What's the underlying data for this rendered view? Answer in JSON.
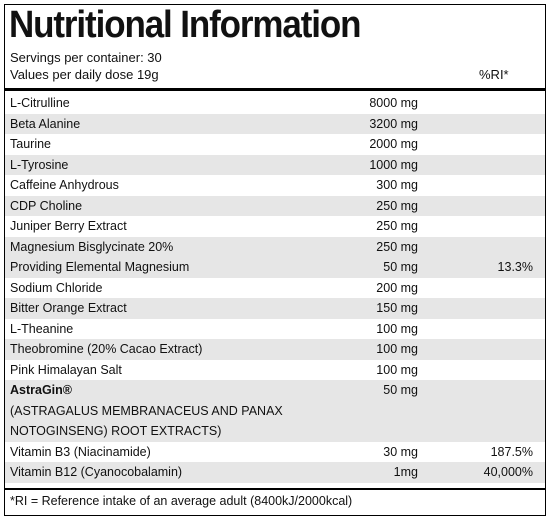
{
  "title": "Nutritional Information",
  "servings": "Servings per container: 30",
  "values_per": "Values per daily dose 19g",
  "ri_header": "%RI*",
  "rows": [
    {
      "name": "L-Citrulline",
      "amount": "8000 mg",
      "ri": ""
    },
    {
      "name": "Beta Alanine",
      "amount": "3200 mg",
      "ri": ""
    },
    {
      "name": "Taurine",
      "amount": "2000 mg",
      "ri": ""
    },
    {
      "name": "L-Tyrosine",
      "amount": "1000 mg",
      "ri": ""
    },
    {
      "name": "Caffeine Anhydrous",
      "amount": "300 mg",
      "ri": ""
    },
    {
      "name": "CDP Choline",
      "amount": "250 mg",
      "ri": ""
    },
    {
      "name": "Juniper Berry Extract",
      "amount": "250 mg",
      "ri": ""
    },
    {
      "name": "Magnesium Bisglycinate 20%",
      "amount": "250 mg",
      "ri": ""
    },
    {
      "name": "Providing Elemental Magnesium",
      "amount": "50 mg",
      "ri": "13.3%"
    },
    {
      "name": "Sodium Chloride",
      "amount": "200 mg",
      "ri": ""
    },
    {
      "name": "Bitter Orange Extract",
      "amount": "150 mg",
      "ri": ""
    },
    {
      "name": "L-Theanine",
      "amount": "100 mg",
      "ri": ""
    },
    {
      "name": "Theobromine (20% Cacao Extract)",
      "amount": "100 mg",
      "ri": ""
    },
    {
      "name": "Pink Himalayan Salt",
      "amount": "100 mg",
      "ri": ""
    }
  ],
  "astragin": {
    "name": "AstraGin®",
    "amount": "50 mg",
    "line2": "(ASTRAGALUS MEMBRANACEUS AND PANAX",
    "line3": "NOTOGINSENG) ROOT EXTRACTS)"
  },
  "vitamins": [
    {
      "name": "Vitamin B3 (Niacinamide)",
      "amount": "30 mg",
      "ri": "187.5%"
    },
    {
      "name": "Vitamin B12 (Cyanocobalamin)",
      "amount": "1mg",
      "ri": "40,000%"
    }
  ],
  "footnote": "*RI = Reference intake of an average adult (8400kJ/2000kcal)"
}
